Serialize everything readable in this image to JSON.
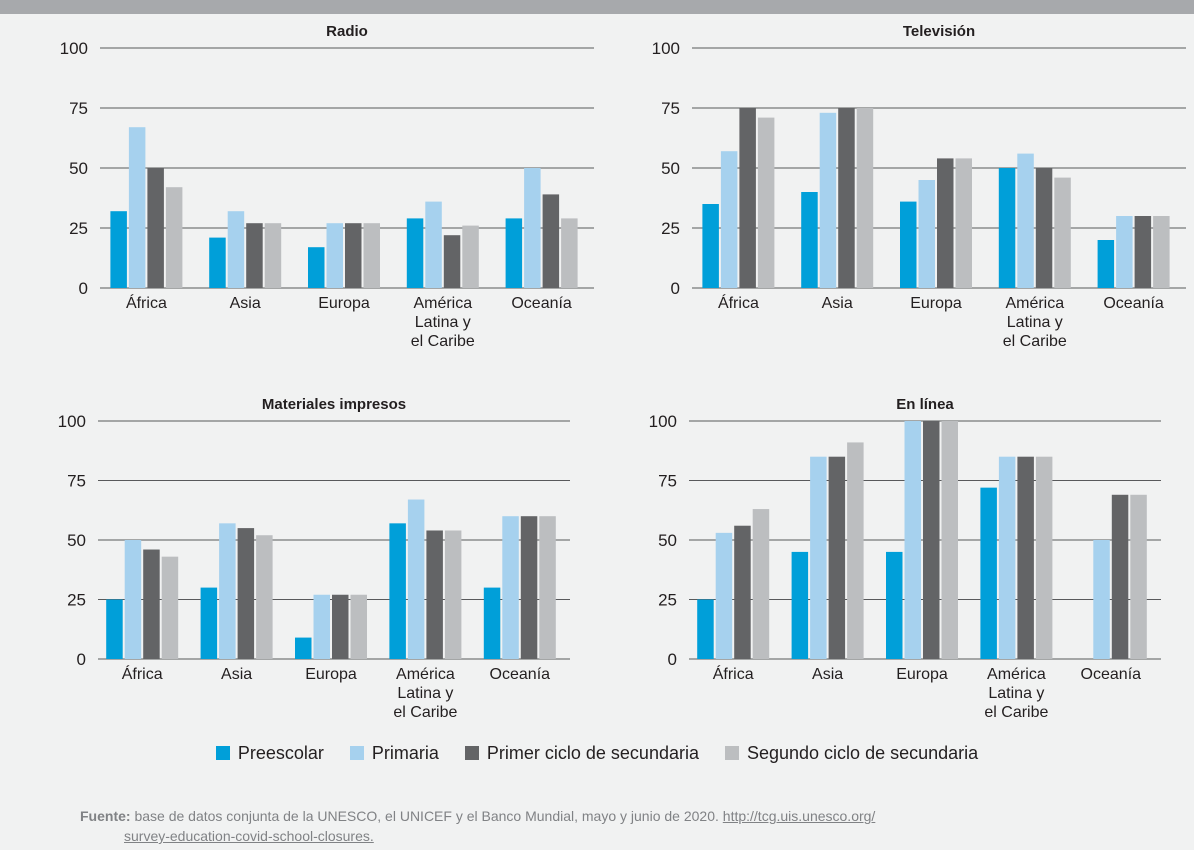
{
  "colors": {
    "background": "#f1f2f2",
    "top_bar": "#a7a9ac",
    "gridline": "#58595b",
    "text": "#231f20",
    "series": [
      "#009fd9",
      "#a6d1ee",
      "#636466",
      "#bcbec0"
    ]
  },
  "legend": {
    "items": [
      "Preescolar",
      "Primaria",
      "Primer ciclo de secundaria",
      "Segundo ciclo de secundaria"
    ],
    "placement": "bottom"
  },
  "source": {
    "lead": "Fuente:",
    "text": "base de datos conjunta de la UNESCO, el UNICEF y el Banco Mundial, mayo y junio de 2020.",
    "url": "http://tcg.uis.unesco.org/",
    "url_cont": "survey-education-covid-school-closures."
  },
  "chart_data": [
    {
      "type": "bar",
      "title": "Radio",
      "categories": [
        [
          "África"
        ],
        [
          "Asia"
        ],
        [
          "Europa"
        ],
        [
          "América",
          "Latina y",
          "el Caribe"
        ],
        [
          "Oceanía"
        ]
      ],
      "ylim": [
        0,
        100
      ],
      "yticks": [
        0,
        25,
        50,
        75,
        100
      ],
      "grid": true,
      "series": [
        {
          "name": "Preescolar",
          "values": [
            32,
            21,
            17,
            29,
            29
          ]
        },
        {
          "name": "Primaria",
          "values": [
            67,
            32,
            27,
            36,
            50
          ]
        },
        {
          "name": "Primer ciclo de secundaria",
          "values": [
            50,
            27,
            27,
            22,
            39
          ]
        },
        {
          "name": "Segundo ciclo de secundaria",
          "values": [
            42,
            27,
            27,
            26,
            29
          ]
        }
      ]
    },
    {
      "type": "bar",
      "title": "Televisión",
      "categories": [
        [
          "África"
        ],
        [
          "Asia"
        ],
        [
          "Europa"
        ],
        [
          "América",
          "Latina y",
          "el Caribe"
        ],
        [
          "Oceanía"
        ]
      ],
      "ylim": [
        0,
        100
      ],
      "yticks": [
        0,
        25,
        50,
        75,
        100
      ],
      "grid": true,
      "series": [
        {
          "name": "Preescolar",
          "values": [
            35,
            40,
            36,
            50,
            20
          ]
        },
        {
          "name": "Primaria",
          "values": [
            57,
            73,
            45,
            56,
            30
          ]
        },
        {
          "name": "Primer ciclo de secundaria",
          "values": [
            75,
            75,
            54,
            50,
            30
          ]
        },
        {
          "name": "Segundo ciclo de secundaria",
          "values": [
            71,
            75,
            54,
            46,
            30
          ]
        }
      ]
    },
    {
      "type": "bar",
      "title": "Materiales impresos",
      "categories": [
        [
          "África"
        ],
        [
          "Asia"
        ],
        [
          "Europa"
        ],
        [
          "América",
          "Latina y",
          "el Caribe"
        ],
        [
          "Oceanía"
        ]
      ],
      "ylim": [
        0,
        100
      ],
      "yticks": [
        0,
        25,
        50,
        75,
        100
      ],
      "grid": true,
      "series": [
        {
          "name": "Preescolar",
          "values": [
            25,
            30,
            9,
            57,
            30
          ]
        },
        {
          "name": "Primaria",
          "values": [
            50,
            57,
            27,
            67,
            60
          ]
        },
        {
          "name": "Primer ciclo de secundaria",
          "values": [
            46,
            55,
            27,
            54,
            60
          ]
        },
        {
          "name": "Segundo ciclo de secundaria",
          "values": [
            43,
            52,
            27,
            54,
            60
          ]
        }
      ]
    },
    {
      "type": "bar",
      "title": "En línea",
      "categories": [
        [
          "África"
        ],
        [
          "Asia"
        ],
        [
          "Europa"
        ],
        [
          "América",
          "Latina y",
          "el Caribe"
        ],
        [
          "Oceanía"
        ]
      ],
      "ylim": [
        0,
        100
      ],
      "yticks": [
        0,
        25,
        50,
        75,
        100
      ],
      "grid": true,
      "series": [
        {
          "name": "Preescolar",
          "values": [
            25,
            45,
            45,
            72,
            0
          ]
        },
        {
          "name": "Primaria",
          "values": [
            53,
            85,
            100,
            85,
            50
          ]
        },
        {
          "name": "Primer ciclo de secundaria",
          "values": [
            56,
            85,
            100,
            85,
            69
          ]
        },
        {
          "name": "Segundo ciclo de secundaria",
          "values": [
            63,
            91,
            100,
            85,
            69
          ]
        }
      ]
    }
  ]
}
